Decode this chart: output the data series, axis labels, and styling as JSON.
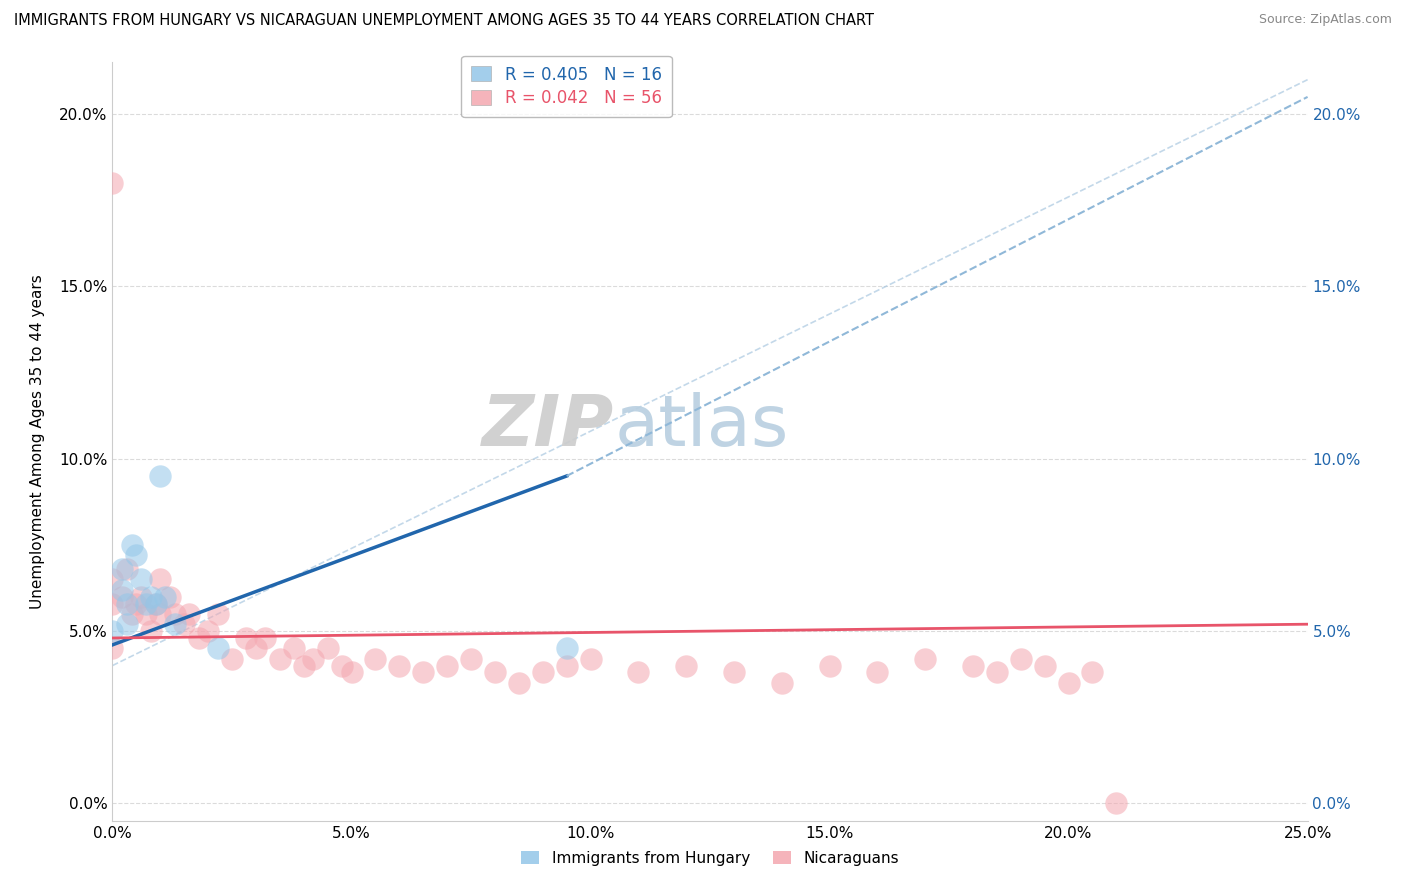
{
  "title": "IMMIGRANTS FROM HUNGARY VS NICARAGUAN UNEMPLOYMENT AMONG AGES 35 TO 44 YEARS CORRELATION CHART",
  "source": "Source: ZipAtlas.com",
  "ylabel": "Unemployment Among Ages 35 to 44 years",
  "xlim": [
    0.0,
    0.25
  ],
  "ylim": [
    0.0,
    0.21
  ],
  "yticks": [
    0.0,
    0.05,
    0.1,
    0.15,
    0.2
  ],
  "ytick_labels": [
    "0.0%",
    "5.0%",
    "10.0%",
    "15.0%",
    "20.0%"
  ],
  "xticks": [
    0.0,
    0.05,
    0.1,
    0.15,
    0.2,
    0.25
  ],
  "xtick_labels": [
    "0.0%",
    "5.0%",
    "10.0%",
    "15.0%",
    "20.0%",
    "25.0%"
  ],
  "color_hungary": "#93c6e8",
  "color_nicaragua": "#f4a7b0",
  "color_line_hungary": "#2166ac",
  "color_line_nicaragua": "#e8546a",
  "color_line_dashed": "#90b8d8",
  "watermark_zip": "ZIP",
  "watermark_atlas": "atlas",
  "hungary_x": [
    0.0,
    0.002,
    0.002,
    0.003,
    0.003,
    0.004,
    0.005,
    0.006,
    0.007,
    0.008,
    0.009,
    0.01,
    0.011,
    0.013,
    0.095,
    0.022
  ],
  "hungary_y": [
    0.05,
    0.068,
    0.062,
    0.058,
    0.052,
    0.075,
    0.072,
    0.065,
    0.058,
    0.06,
    0.058,
    0.095,
    0.06,
    0.052,
    0.045,
    0.045
  ],
  "nicaragua_x": [
    0.0,
    0.0,
    0.0,
    0.0,
    0.002,
    0.003,
    0.004,
    0.005,
    0.006,
    0.007,
    0.008,
    0.009,
    0.01,
    0.01,
    0.012,
    0.013,
    0.015,
    0.016,
    0.018,
    0.02,
    0.022,
    0.025,
    0.028,
    0.03,
    0.032,
    0.035,
    0.038,
    0.04,
    0.042,
    0.045,
    0.048,
    0.05,
    0.055,
    0.06,
    0.065,
    0.07,
    0.075,
    0.08,
    0.085,
    0.09,
    0.095,
    0.1,
    0.11,
    0.12,
    0.13,
    0.14,
    0.15,
    0.16,
    0.17,
    0.18,
    0.185,
    0.19,
    0.195,
    0.2,
    0.205,
    0.21
  ],
  "nicaragua_y": [
    0.18,
    0.065,
    0.058,
    0.045,
    0.06,
    0.068,
    0.055,
    0.058,
    0.06,
    0.055,
    0.05,
    0.058,
    0.065,
    0.055,
    0.06,
    0.055,
    0.052,
    0.055,
    0.048,
    0.05,
    0.055,
    0.042,
    0.048,
    0.045,
    0.048,
    0.042,
    0.045,
    0.04,
    0.042,
    0.045,
    0.04,
    0.038,
    0.042,
    0.04,
    0.038,
    0.04,
    0.042,
    0.038,
    0.035,
    0.038,
    0.04,
    0.042,
    0.038,
    0.04,
    0.038,
    0.035,
    0.04,
    0.038,
    0.042,
    0.04,
    0.038,
    0.042,
    0.04,
    0.035,
    0.038,
    0.0
  ],
  "hungary_line_x0": 0.0,
  "hungary_line_y0": 0.046,
  "hungary_line_x1": 0.095,
  "hungary_line_y1": 0.095,
  "hungary_line_dashed_x1": 0.25,
  "hungary_line_dashed_y1": 0.205,
  "nicaragua_line_x0": 0.0,
  "nicaragua_line_y0": 0.048,
  "nicaragua_line_x1": 0.25,
  "nicaragua_line_y1": 0.052,
  "gray_line_x0": 0.0,
  "gray_line_y0": 0.04,
  "gray_line_x1": 0.25,
  "gray_line_y1": 0.21
}
